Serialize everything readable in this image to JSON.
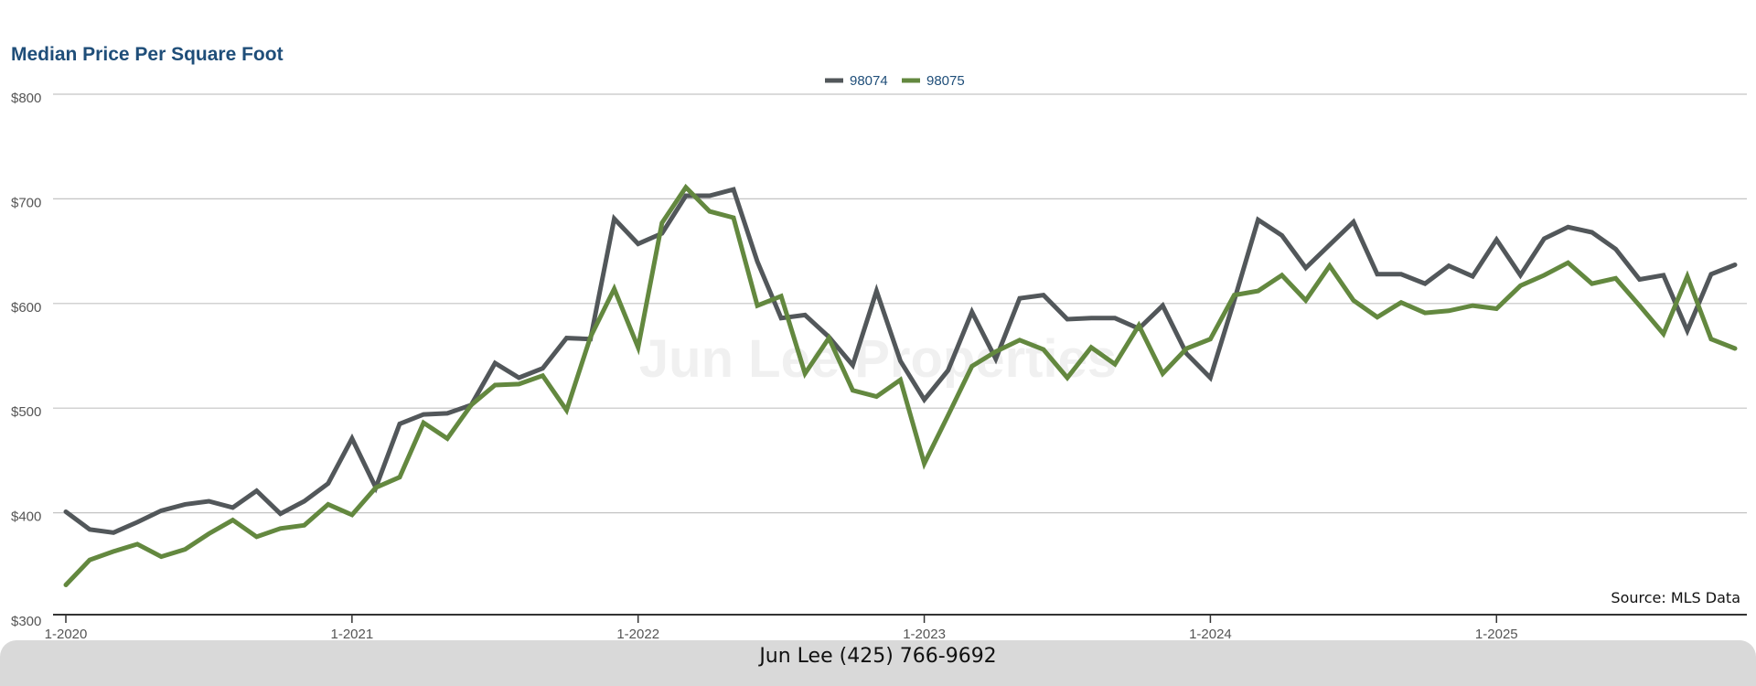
{
  "chart_data": {
    "type": "line",
    "title": "Median Price Per Square Foot",
    "xlabel": "",
    "ylabel": "",
    "ylim": [
      300,
      800
    ],
    "y_ticks": [
      300,
      400,
      500,
      600,
      700,
      800
    ],
    "y_tick_labels": [
      "$300",
      "$400",
      "$500",
      "$600",
      "$700",
      "$800"
    ],
    "x_tick_labels": [
      "1-2020",
      "1-2021",
      "1-2022",
      "1-2023",
      "1-2024",
      "1-2025"
    ],
    "x_tick_index": [
      0,
      12,
      24,
      36,
      48,
      60
    ],
    "grid": true,
    "legend": "top-center",
    "series": [
      {
        "name": "98074",
        "color": "#52575a",
        "values": [
          401,
          384,
          381,
          391,
          402,
          408,
          411,
          405,
          421,
          399,
          411,
          428,
          471,
          424,
          485,
          494,
          495,
          503,
          543,
          529,
          538,
          567,
          566,
          681,
          657,
          667,
          703,
          703,
          709,
          640,
          586,
          589,
          568,
          541,
          612,
          545,
          508,
          536,
          592,
          547,
          605,
          608,
          585,
          586,
          586,
          576,
          598,
          552,
          529,
          603,
          680,
          665,
          634,
          656,
          678,
          628,
          628,
          619,
          636,
          626,
          661,
          627,
          662,
          673,
          668,
          652,
          623,
          627,
          574,
          628,
          637
        ]
      },
      {
        "name": "98075",
        "color": "#63883f",
        "values": [
          331,
          355,
          363,
          370,
          358,
          365,
          380,
          393,
          377,
          385,
          388,
          408,
          398,
          424,
          434,
          486,
          471,
          503,
          522,
          523,
          531,
          498,
          568,
          614,
          558,
          677,
          711,
          688,
          682,
          598,
          607,
          533,
          567,
          517,
          511,
          527,
          447,
          493,
          540,
          554,
          565,
          556,
          529,
          558,
          542,
          579,
          533,
          557,
          566,
          608,
          612,
          627,
          603,
          636,
          603,
          587,
          601,
          591,
          593,
          598,
          595,
          617,
          627,
          639,
          619,
          624,
          598,
          571,
          626,
          566,
          557
        ]
      }
    ],
    "annotations": {
      "source": "Source: MLS Data",
      "watermark": "Jun Lee Properties"
    }
  },
  "footer": {
    "contact": "Jun Lee (425) 766-9692"
  }
}
